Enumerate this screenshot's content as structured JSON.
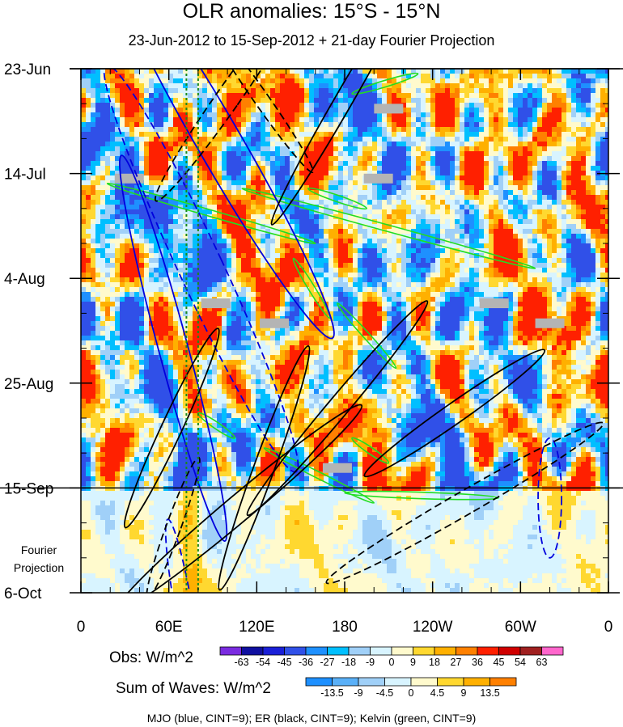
{
  "title": "OLR anomalies: 15°S - 15°N",
  "subtitle": "23-Jun-2012 to 15-Sep-2012 + 21-day Fourier Projection",
  "projection_label": [
    "Fourier",
    "Projection"
  ],
  "obs_colorbar": {
    "label": "Obs: W/m^2",
    "levels": [
      "-63",
      "-54",
      "-45",
      "-36",
      "-27",
      "-18",
      "-9",
      "0",
      "9",
      "18",
      "27",
      "36",
      "45",
      "54",
      "63"
    ],
    "colors": [
      "#7a2be0",
      "#1010a0",
      "#1a20d8",
      "#3050e8",
      "#1e90ff",
      "#00bfff",
      "#a0d0f8",
      "#d8f4ff",
      "#fffacd",
      "#ffd830",
      "#ffb000",
      "#ff8000",
      "#ff2000",
      "#d00000",
      "#a02020",
      "#ff66cc"
    ]
  },
  "wave_colorbar": {
    "label": "Sum of Waves: W/m^2",
    "levels": [
      "-13.5",
      "-9",
      "-4.5",
      "0",
      "4.5",
      "9",
      "13.5"
    ],
    "colors": [
      "#1e90ff",
      "#5ab0f8",
      "#a0d0f8",
      "#d8f4ff",
      "#fffacd",
      "#ffd830",
      "#ffb000",
      "#ff8000"
    ]
  },
  "caption": "MJO (blue, CINT=9); ER (black, CINT=9); Kelvin (green, CINT=9)",
  "chart_data": {
    "type": "heatmap",
    "x_ticks": [
      "0",
      "60E",
      "120E",
      "180",
      "120W",
      "60W",
      "0"
    ],
    "x_tick_values": [
      0,
      60,
      120,
      180,
      240,
      300,
      360
    ],
    "x_range": [
      0,
      360
    ],
    "y_ticks": [
      "23-Jun",
      "14-Jul",
      "4-Aug",
      "25-Aug",
      "15-Sep",
      "6-Oct"
    ],
    "y_tick_days": [
      0,
      21,
      42,
      63,
      84,
      105
    ],
    "y_range": [
      "23-Jun-2012",
      "6-Oct-2012"
    ],
    "observation_end": "15-Sep-2012",
    "projection_days": 21,
    "colors": {
      "mjo": "#0000dd",
      "er": "#000000",
      "kelvin": "#22dd22",
      "mjo_phase_line": "#1a8a1a",
      "missing": "#b4b4b4"
    },
    "mjo_phase_lines_lon": [
      72,
      80
    ],
    "kelvin_bands": [
      {
        "lon0": 230,
        "day0": 1,
        "lon1": 185,
        "day1": 5
      },
      {
        "lon0": 18,
        "day0": 23,
        "lon1": 160,
        "day1": 35
      },
      {
        "lon0": 110,
        "day0": 24,
        "lon1": 310,
        "day1": 40
      },
      {
        "lon0": 155,
        "day0": 24,
        "lon1": 195,
        "day1": 28
      },
      {
        "lon0": 145,
        "day0": 38,
        "lon1": 170,
        "day1": 50
      },
      {
        "lon0": 175,
        "day0": 47,
        "lon1": 215,
        "day1": 60
      },
      {
        "lon0": 80,
        "day0": 69,
        "lon1": 105,
        "day1": 74
      },
      {
        "lon0": 185,
        "day0": 74,
        "lon1": 210,
        "day1": 79
      },
      {
        "lon0": 125,
        "day0": 76,
        "lon1": 200,
        "day1": 87
      },
      {
        "lon0": 180,
        "day0": 85,
        "lon1": 285,
        "day1": 86
      }
    ],
    "mjo_contours": [
      {
        "lon": 95,
        "day": 15,
        "rx": 15,
        "ry": 45,
        "rot": -30,
        "dash": false
      },
      {
        "lon": 63,
        "day": 56,
        "rx": 10,
        "ry": 40,
        "rot": -15,
        "dash": false
      },
      {
        "lon": 82,
        "day": 40,
        "rx": 15,
        "ry": 45,
        "rot": -25,
        "dash": true
      },
      {
        "lon": 70,
        "day": 108,
        "rx": 6,
        "ry": 18,
        "rot": -10,
        "dash": true
      },
      {
        "lon": 320,
        "day": 86,
        "rx": 8,
        "ry": 12,
        "rot": 0,
        "dash": true
      }
    ],
    "er_contours": [
      {
        "lon": 100,
        "day": 6,
        "rx": 8,
        "ry": 25,
        "rot": 35,
        "dash": true
      },
      {
        "lon": 123,
        "day": 6,
        "rx": 5,
        "ry": 18,
        "rot": -35,
        "dash": true
      },
      {
        "lon": 178,
        "day": 7,
        "rx": 6,
        "ry": 28,
        "rot": 30,
        "dash": false
      },
      {
        "lon": 62,
        "day": 72,
        "rx": 7,
        "ry": 22,
        "rot": 25,
        "dash": false
      },
      {
        "lon": 125,
        "day": 80,
        "rx": 7,
        "ry": 26,
        "rot": 20,
        "dash": false
      },
      {
        "lon": 108,
        "day": 88,
        "rx": 9,
        "ry": 32,
        "rot": 50,
        "dash": false
      },
      {
        "lon": 175,
        "day": 68,
        "rx": 7,
        "ry": 28,
        "rot": 40,
        "dash": false
      },
      {
        "lon": 63,
        "day": 92,
        "rx": 5,
        "ry": 15,
        "rot": 20,
        "dash": true
      },
      {
        "lon": 255,
        "day": 69,
        "rx": 7,
        "ry": 22,
        "rot": 55,
        "dash": false
      },
      {
        "lon": 262,
        "day": 87,
        "rx": 8,
        "ry": 32,
        "rot": 60,
        "dash": true
      }
    ],
    "missing_boxes": [
      {
        "lon": 210,
        "day": 8
      },
      {
        "lon": 33,
        "day": 22
      },
      {
        "lon": 203,
        "day": 22
      },
      {
        "lon": 92,
        "day": 47
      },
      {
        "lon": 132,
        "day": 51
      },
      {
        "lon": 282,
        "day": 47
      },
      {
        "lon": 320,
        "day": 51
      },
      {
        "lon": 175,
        "day": 80
      }
    ]
  }
}
